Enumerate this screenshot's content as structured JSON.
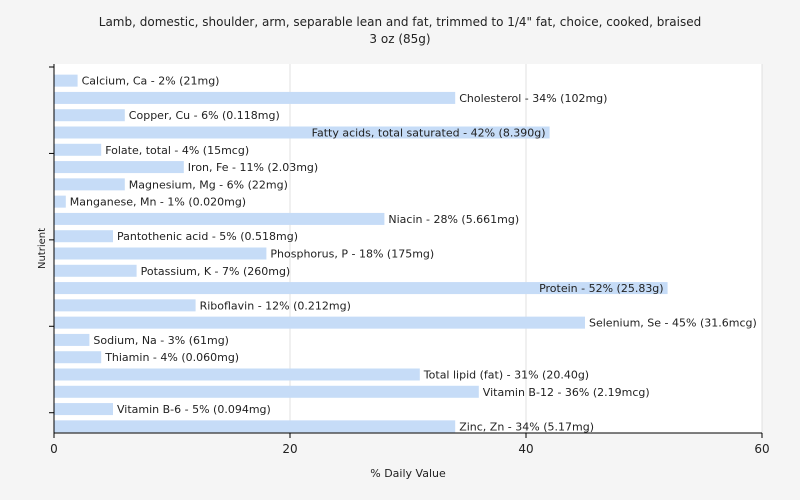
{
  "chart_data": {
    "type": "bar",
    "orientation": "horizontal",
    "title": "Lamb, domestic, shoulder, arm, separable lean and fat, trimmed to 1/4\" fat, choice, cooked, braised",
    "subtitle": "3 oz (85g)",
    "xlabel": "% Daily Value",
    "ylabel": "Nutrient",
    "xlim": [
      0,
      60
    ],
    "xticks": [
      "0",
      "20",
      "40",
      "60"
    ],
    "grid": true,
    "colors": {
      "bar": "#c6dcf7",
      "plot_bg": "#ffffff",
      "grid": "#e0e0e0",
      "page_bg": "#f5f5f5"
    },
    "categories": [
      "Calcium, Ca",
      "Cholesterol",
      "Copper, Cu",
      "Fatty acids, total saturated",
      "Folate, total",
      "Iron, Fe",
      "Magnesium, Mg",
      "Manganese, Mn",
      "Niacin",
      "Pantothenic acid",
      "Phosphorus, P",
      "Potassium, K",
      "Protein",
      "Riboflavin",
      "Selenium, Se",
      "Sodium, Na",
      "Thiamin",
      "Total lipid (fat)",
      "Vitamin B-12",
      "Vitamin B-6",
      "Zinc, Zn"
    ],
    "values": [
      2,
      34,
      6,
      42,
      4,
      11,
      6,
      1,
      28,
      5,
      18,
      7,
      52,
      12,
      45,
      3,
      4,
      31,
      36,
      5,
      34
    ],
    "labels": [
      "Calcium, Ca - 2% (21mg)",
      "Cholesterol - 34% (102mg)",
      "Copper, Cu - 6% (0.118mg)",
      "Fatty acids, total saturated - 42% (8.390g)",
      "Folate, total - 4% (15mcg)",
      "Iron, Fe - 11% (2.03mg)",
      "Magnesium, Mg - 6% (22mg)",
      "Manganese, Mn - 1% (0.020mg)",
      "Niacin - 28% (5.661mg)",
      "Pantothenic acid - 5% (0.518mg)",
      "Phosphorus, P - 18% (175mg)",
      "Potassium, K - 7% (260mg)",
      "Protein - 52% (25.83g)",
      "Riboflavin - 12% (0.212mg)",
      "Selenium, Se - 45% (31.6mcg)",
      "Sodium, Na - 3% (61mg)",
      "Thiamin - 4% (0.060mg)",
      "Total lipid (fat) - 31% (20.40g)",
      "Vitamin B-12 - 36% (2.19mcg)",
      "Vitamin B-6 - 5% (0.094mg)",
      "Zinc, Zn - 34% (5.17mg)"
    ]
  }
}
